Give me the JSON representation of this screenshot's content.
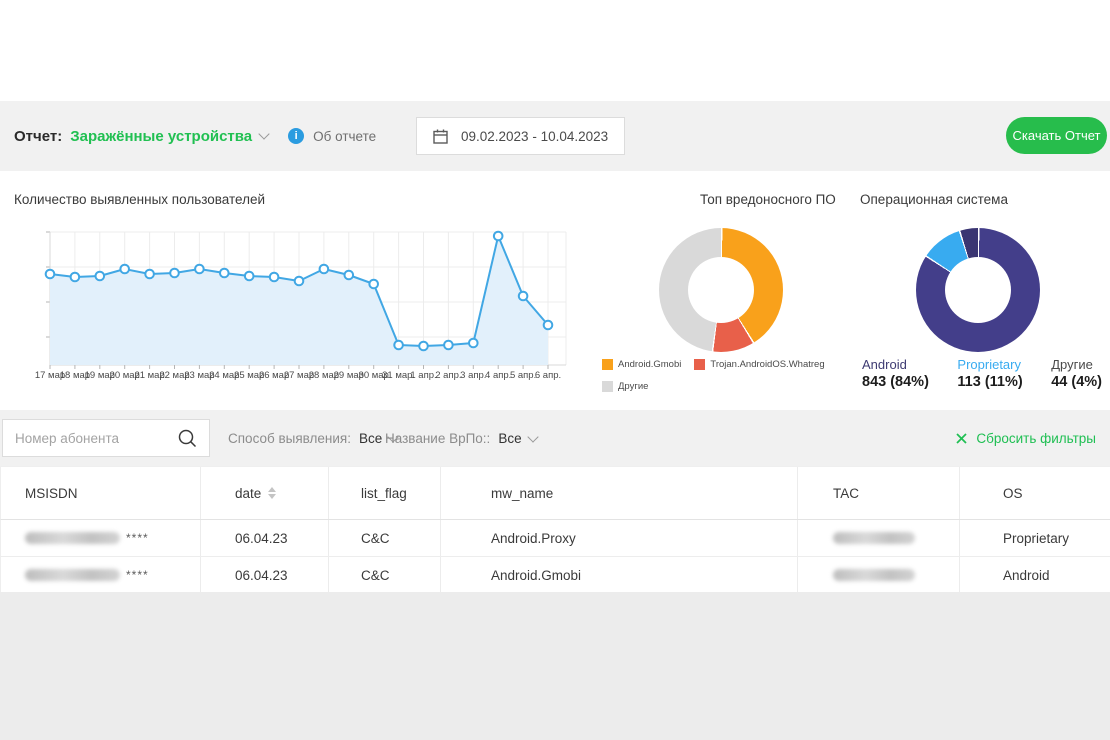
{
  "colors": {
    "brand_green": "#21c052",
    "button_green": "#27bd4c",
    "band_gray": "#f1f1f1",
    "bottom_gray": "#ececec",
    "line_blue": "#41a7e4",
    "line_fill": "#e2f0fb",
    "info_blue": "#2b9ce0",
    "grid_gray": "#ececec"
  },
  "header": {
    "report_label": "Отчет:",
    "report_name": "Заражённые устройства",
    "about_report": "Об отчете",
    "info_glyph": "i",
    "date_range": "09.02.2023 - 10.04.2023",
    "download_button": "Скачать Отчет"
  },
  "chart_data": [
    {
      "type": "line",
      "title": "Количество выявленных пользователей",
      "x": [
        "17 мар",
        "18 мар",
        "19 мар",
        "20 мар",
        "21 мар",
        "22 мар",
        "23 мар",
        "24 мар",
        "25 мар",
        "26 мар",
        "27 мар",
        "28 мар",
        "29 мар",
        "30 мар",
        "31 мар.",
        "1 апр.",
        "2 апр.",
        "3 апр.",
        "4 апр.",
        "5 апр.",
        "6 апр."
      ],
      "values": [
        91,
        88,
        89,
        96,
        91,
        92,
        96,
        92,
        89,
        88,
        84,
        96,
        90,
        81,
        20,
        19,
        20,
        22,
        129,
        69,
        40
      ],
      "xlabel": "",
      "ylabel": "",
      "ylim": [
        0,
        133
      ],
      "grid": true,
      "legend_position": "none",
      "line_color": "#41a7e4",
      "fill_color": "#e2f0fb",
      "marker": "circle-open"
    },
    {
      "type": "pie",
      "title": "Топ вредоносного ПО",
      "donut": true,
      "legend_position": "bottom",
      "slices": [
        {
          "label": "Android.Gmobi",
          "pct": 41,
          "color": "#f9a11b"
        },
        {
          "label": "Trojan.AndroidOS.Whatreg",
          "pct": 11,
          "color": "#e8604a"
        },
        {
          "label": "Другие",
          "pct": 48,
          "color": "#d9d9d9"
        }
      ]
    },
    {
      "type": "pie",
      "title": "Операционная система",
      "donut": true,
      "legend_position": "bottom-stats",
      "slices": [
        {
          "label": "Android",
          "value": 843,
          "pct": 84,
          "stat": "843 (84%)",
          "color": "#433e8a",
          "label_color": "#3e3b72"
        },
        {
          "label": "Proprietary",
          "value": 113,
          "pct": 11,
          "stat": "113 (11%)",
          "color": "#38abf0",
          "label_color": "#38abf0"
        },
        {
          "label": "Другие",
          "value": 44,
          "pct": 4,
          "stat": "44 (4%)",
          "color": "#3a3572",
          "label_color": "#4a4a4a"
        }
      ]
    }
  ],
  "filters": {
    "search_placeholder": "Номер абонента",
    "detection_label": "Способ выявления:",
    "detection_value": "Все",
    "malware_label": "Название ВрПо::",
    "malware_value": "Все",
    "reset_label": "Сбросить фильтры"
  },
  "table": {
    "columns": [
      {
        "key": "msisdn",
        "label": "MSISDN",
        "sortable": false
      },
      {
        "key": "date",
        "label": "date",
        "sortable": true
      },
      {
        "key": "list_flag",
        "label": "list_flag",
        "sortable": false
      },
      {
        "key": "mw_name",
        "label": "mw_name",
        "sortable": false
      },
      {
        "key": "tac",
        "label": "TAC",
        "sortable": false
      },
      {
        "key": "os",
        "label": "OS",
        "sortable": false
      }
    ],
    "rows": [
      {
        "msisdn": "****",
        "msisdn_blurred": true,
        "date": "06.04.23",
        "list_flag": "C&C",
        "mw_name": "Android.Proxy",
        "tac": "",
        "tac_blurred": true,
        "os": "Proprietary"
      },
      {
        "msisdn": "****",
        "msisdn_blurred": true,
        "date": "06.04.23",
        "list_flag": "C&C",
        "mw_name": "Android.Gmobi",
        "tac": "",
        "tac_blurred": true,
        "os": "Android"
      }
    ]
  },
  "icons": {
    "info": "info-circle",
    "calendar": "calendar",
    "search": "magnifier",
    "chevron": "chevron-down",
    "reset": "close-x",
    "sort": "caret-up-down"
  }
}
